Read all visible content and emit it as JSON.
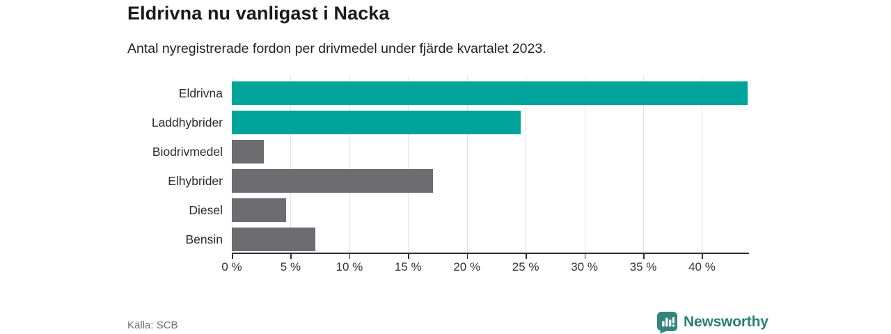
{
  "chart": {
    "title": "Eldrivna nu vanligast i Nacka",
    "subtitle": "Antal nyregistrerade fordon per drivmedel under fjärde kvartalet 2023."
  },
  "chart_data": {
    "type": "bar",
    "orientation": "horizontal",
    "title": "Eldrivna nu vanligast i Nacka",
    "subtitle": "Antal nyregistrerade fordon per drivmedel under fjärde kvartalet 2023.",
    "categories": [
      "Eldrivna",
      "Laddhybrider",
      "Biodrivmedel",
      "Elhybrider",
      "Diesel",
      "Bensin"
    ],
    "values": [
      43.9,
      24.6,
      2.7,
      17.1,
      4.6,
      7.1
    ],
    "unit": "%",
    "bar_colors": [
      "#00a49a",
      "#00a49a",
      "#6c6c71",
      "#6c6c71",
      "#6c6c71",
      "#6c6c71"
    ],
    "xlim": [
      0,
      44
    ],
    "xticks": [
      0,
      5,
      10,
      15,
      20,
      25,
      30,
      35,
      40
    ],
    "xtick_format": "{v} %",
    "grid": true,
    "legend": false,
    "xlabel": "",
    "ylabel": ""
  },
  "footer": {
    "source": "Källa: SCB",
    "brand": "Newsworthy"
  },
  "colors": {
    "bar_teal": "#00a49a",
    "bar_gray": "#6c6c71",
    "grid": "#e3e3e3",
    "axis": "#2f2f2f",
    "logo_mark": "#35837d",
    "brand_text": "#2b7e78",
    "muted_text": "#6f6f6f"
  }
}
